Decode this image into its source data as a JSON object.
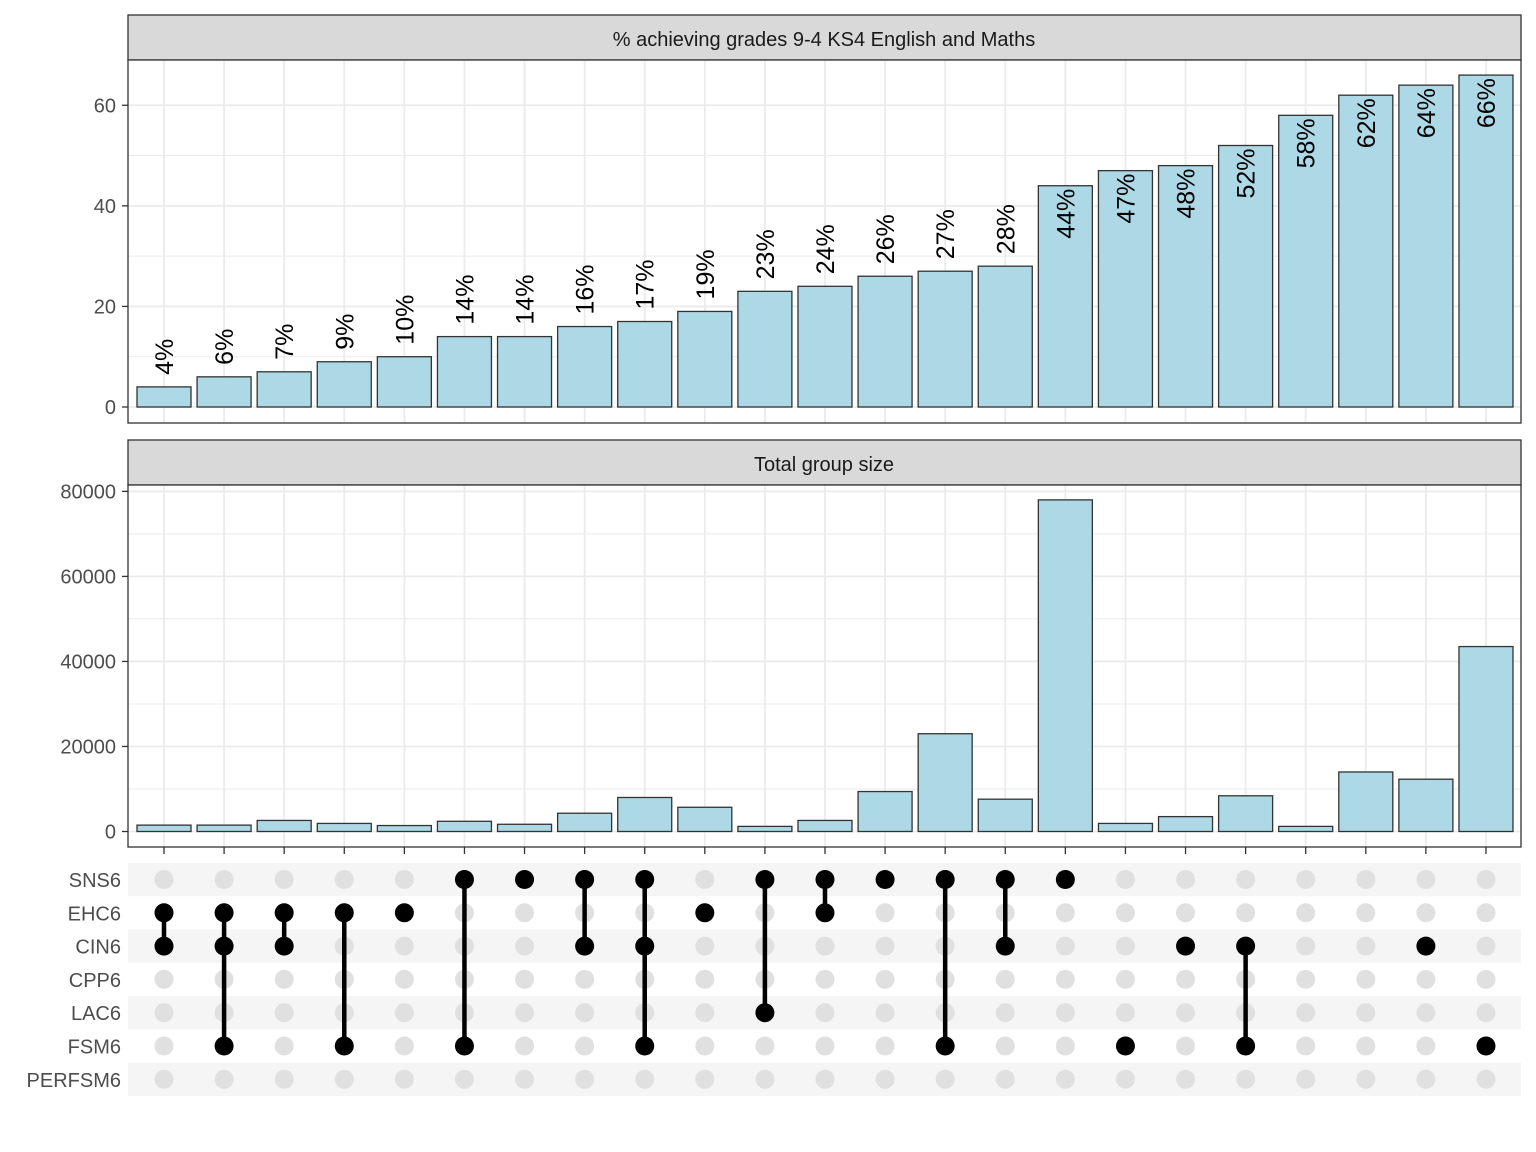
{
  "chart_data": {
    "type": "bar",
    "colors": {
      "bar_fill": "#add8e6",
      "bar_stroke": "#333333",
      "strip_fill": "#d9d9d9",
      "dot_on": "#000000",
      "dot_off": "#e0e0e0",
      "grid": "#ebebeb",
      "row_band": "#f5f5f5"
    },
    "panels": [
      {
        "title": "% achieving grades 9-4 KS4 English and Maths",
        "ylim": [
          0,
          69
        ],
        "yticks": [
          0,
          20,
          40,
          60
        ],
        "values": [
          4,
          6,
          7,
          9,
          10,
          14,
          14,
          16,
          17,
          19,
          23,
          24,
          26,
          27,
          28,
          44,
          47,
          48,
          52,
          58,
          62,
          64,
          66
        ],
        "labels": [
          "4%",
          "6%",
          "7%",
          "9%",
          "10%",
          "14%",
          "14%",
          "16%",
          "17%",
          "19%",
          "23%",
          "24%",
          "26%",
          "27%",
          "28%",
          "44%",
          "47%",
          "48%",
          "52%",
          "58%",
          "62%",
          "64%",
          "66%"
        ]
      },
      {
        "title": "Total group size",
        "ylim": [
          0,
          81500
        ],
        "yticks": [
          0,
          20000,
          40000,
          60000,
          80000
        ],
        "values": [
          1500,
          1500,
          2600,
          1900,
          1400,
          2400,
          1700,
          4300,
          8000,
          5700,
          1200,
          2600,
          9400,
          23000,
          7600,
          78000,
          1900,
          3500,
          8400,
          1200,
          14000,
          12300,
          43500
        ]
      }
    ],
    "matrix": {
      "sets": [
        "SNS6",
        "EHC6",
        "CIN6",
        "CPP6",
        "LAC6",
        "FSM6",
        "PERFSM6"
      ],
      "memberships": [
        [
          "EHC6",
          "CIN6"
        ],
        [
          "EHC6",
          "CIN6",
          "FSM6"
        ],
        [
          "EHC6",
          "CIN6"
        ],
        [
          "EHC6",
          "FSM6"
        ],
        [
          "EHC6"
        ],
        [
          "SNS6",
          "FSM6"
        ],
        [
          "SNS6"
        ],
        [
          "SNS6",
          "CIN6"
        ],
        [
          "SNS6",
          "CIN6",
          "FSM6"
        ],
        [
          "EHC6"
        ],
        [
          "SNS6",
          "LAC6"
        ],
        [
          "SNS6",
          "EHC6"
        ],
        [
          "SNS6"
        ],
        [
          "SNS6",
          "FSM6"
        ],
        [
          "SNS6",
          "CIN6"
        ],
        [
          "SNS6"
        ],
        [
          "FSM6"
        ],
        [
          "CIN6"
        ],
        [
          "CIN6",
          "FSM6"
        ],
        [],
        [],
        [
          "CIN6"
        ],
        [
          "FSM6"
        ]
      ]
    }
  }
}
